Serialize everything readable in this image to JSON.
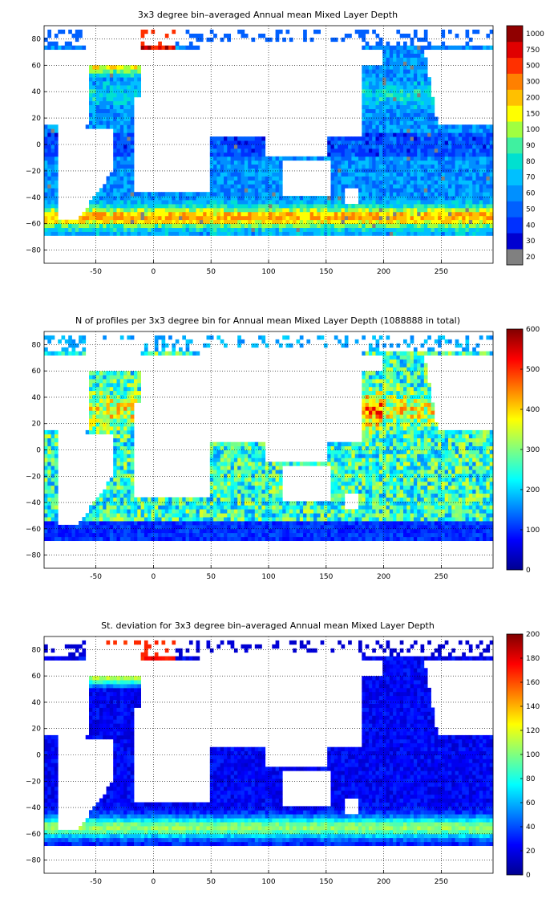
{
  "chart_data": [
    {
      "type": "heatmap",
      "title": "3x3 degree bin–averaged Annual mean Mixed Layer Depth",
      "xlim": [
        -95,
        295
      ],
      "ylim": [
        -90,
        90
      ],
      "xticks": [
        "-50",
        "0",
        "50",
        "100",
        "150",
        "200",
        "250"
      ],
      "xtick_values": [
        -50,
        0,
        50,
        100,
        150,
        200,
        250
      ],
      "yticks": [
        "80",
        "60",
        "40",
        "20",
        "0",
        "−20",
        "−40",
        "−60",
        "−80"
      ],
      "ytick_values": [
        80,
        60,
        40,
        20,
        0,
        -20,
        -40,
        -60,
        -80
      ],
      "grid": true,
      "colorbar": {
        "scale": "categorical",
        "labels": [
          "20",
          "30",
          "40",
          "50",
          "60",
          "70",
          "80",
          "90",
          "100",
          "150",
          "200",
          "300",
          "500",
          "750",
          "1000"
        ],
        "colors": [
          "#808080",
          "#0000d0",
          "#0030ff",
          "#0060ff",
          "#0090ff",
          "#00c0ff",
          "#00e0d0",
          "#40f0a0",
          "#a0ff40",
          "#ffff00",
          "#ffc000",
          "#ff8000",
          "#ff3000",
          "#e00000",
          "#900000"
        ]
      }
    },
    {
      "type": "heatmap",
      "title": "N of profiles per 3x3 degree bin for Annual mean Mixed Layer Depth  (1088888 in total)",
      "xlim": [
        -95,
        295
      ],
      "ylim": [
        -90,
        90
      ],
      "xticks": [
        "-50",
        "0",
        "50",
        "100",
        "150",
        "200",
        "250"
      ],
      "xtick_values": [
        -50,
        0,
        50,
        100,
        150,
        200,
        250
      ],
      "yticks": [
        "80",
        "60",
        "40",
        "20",
        "0",
        "−20",
        "−40",
        "−60",
        "−80"
      ],
      "ytick_values": [
        80,
        60,
        40,
        20,
        0,
        -20,
        -40,
        -60,
        -80
      ],
      "grid": true,
      "colorbar": {
        "scale": "linear",
        "range": [
          0,
          600
        ],
        "labels": [
          "600",
          "500",
          "400",
          "300",
          "200",
          "100",
          "0"
        ]
      }
    },
    {
      "type": "heatmap",
      "title": "St. deviation for 3x3 degree bin–averaged Annual mean Mixed Layer Depth",
      "xlim": [
        -95,
        295
      ],
      "ylim": [
        -90,
        90
      ],
      "xticks": [
        "-50",
        "0",
        "50",
        "100",
        "150",
        "200",
        "250"
      ],
      "xtick_values": [
        -50,
        0,
        50,
        100,
        150,
        200,
        250
      ],
      "yticks": [
        "80",
        "60",
        "40",
        "20",
        "0",
        "−20",
        "−40",
        "−60",
        "−80"
      ],
      "ytick_values": [
        80,
        60,
        40,
        20,
        0,
        -20,
        -40,
        -60,
        -80
      ],
      "grid": true,
      "colorbar": {
        "scale": "linear",
        "range": [
          0,
          200
        ],
        "labels": [
          "200",
          "180",
          "160",
          "140",
          "120",
          "100",
          "80",
          "60",
          "40",
          "20",
          "0"
        ]
      }
    }
  ]
}
